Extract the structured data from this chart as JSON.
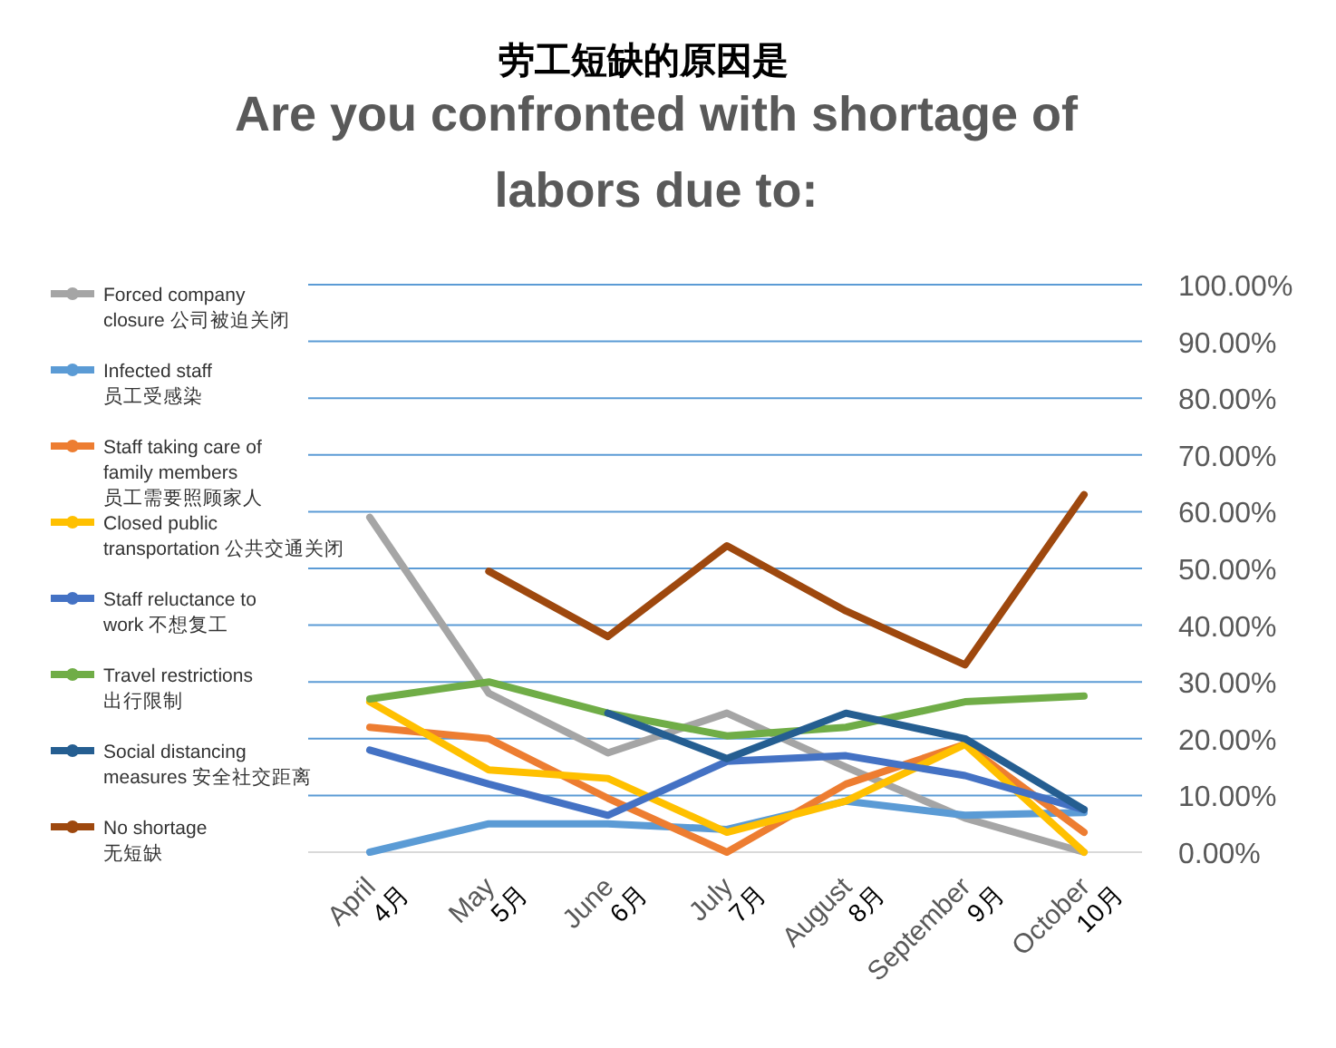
{
  "chart_data": {
    "type": "line",
    "title": "劳工短缺的原因是",
    "subtitle": "Are you confronted with shortage of\nlabors due to:",
    "categories": [
      "April\n4月",
      "May\n5月",
      "June\n6月",
      "July\n7月",
      "August\n8月",
      "September\n9月",
      "October\n10月"
    ],
    "series": [
      {
        "name": "Forced company\nclosure 公司被迫关闭",
        "color": "#a5a5a5",
        "values": [
          59,
          28,
          17.5,
          24.5,
          15,
          6,
          0
        ]
      },
      {
        "name": "Infected staff\n员工受感染",
        "color": "#5b9bd5",
        "values": [
          0,
          5,
          5,
          4,
          9,
          6.5,
          7
        ]
      },
      {
        "name": "Staff taking care of\nfamily members\n员工需要照顾家人",
        "color": "#ed7d31",
        "values": [
          22,
          20,
          9.5,
          0,
          12,
          19,
          3.5
        ]
      },
      {
        "name": "Closed public\ntransportation 公共交通关闭",
        "color": "#ffc000",
        "values": [
          26.5,
          14.5,
          13,
          3.5,
          9,
          19,
          0
        ]
      },
      {
        "name": "Staff reluctance to\nwork 不想复工",
        "color": "#4472c4",
        "values": [
          18,
          12,
          6.5,
          16,
          17,
          13.5,
          7.5
        ]
      },
      {
        "name": "Travel restrictions\n出行限制",
        "color": "#70ad47",
        "values": [
          27,
          30,
          24.5,
          20.5,
          22,
          26.5,
          27.5
        ]
      },
      {
        "name": "Social distancing\nmeasures 安全社交距离",
        "color": "#255e91",
        "values": [
          null,
          null,
          24.5,
          16.5,
          24.5,
          20,
          7.5
        ]
      },
      {
        "name": "No shortage\n无短缺",
        "color": "#9e480e",
        "values": [
          null,
          49.5,
          38,
          54,
          42.5,
          33,
          63
        ]
      }
    ],
    "ylim": [
      0,
      100
    ],
    "yticks": [
      {
        "value": 0,
        "label": "0.00%"
      },
      {
        "value": 10,
        "label": "10.00%"
      },
      {
        "value": 20,
        "label": "20.00%"
      },
      {
        "value": 30,
        "label": "30.00%"
      },
      {
        "value": 40,
        "label": "40.00%"
      },
      {
        "value": 50,
        "label": "50.00%"
      },
      {
        "value": 60,
        "label": "60.00%"
      },
      {
        "value": 70,
        "label": "70.00%"
      },
      {
        "value": 80,
        "label": "80.00%"
      },
      {
        "value": 90,
        "label": "90.00%"
      },
      {
        "value": 100,
        "label": "100.00%"
      }
    ],
    "grid": "y",
    "legend": "left"
  }
}
